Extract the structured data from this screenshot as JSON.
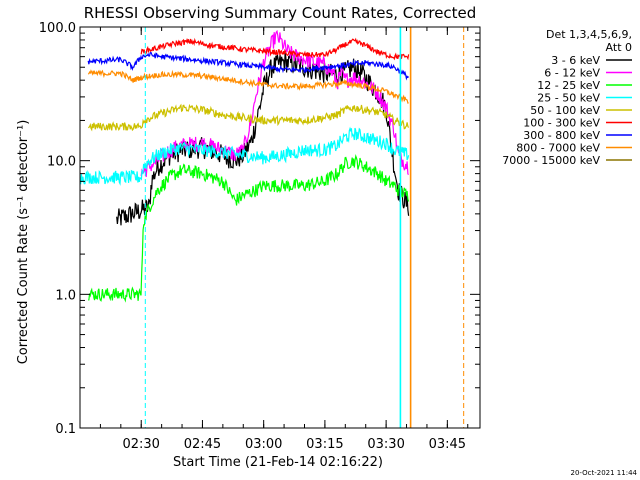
{
  "chart_data": {
    "type": "line",
    "title": "RHESSI Observing Summary Count Rates, Corrected",
    "xlabel": "Start Time (21-Feb-14 02:16:22)",
    "ylabel": "Corrected Count Rate (s⁻¹ detector⁻¹)",
    "yscale": "log",
    "ylim": [
      0.1,
      100
    ],
    "xlim_minutes": [
      -5,
      93
    ],
    "x_unit": "minutes after 02:20 UT",
    "x_ticks": [
      {
        "label": "02:30",
        "value": 10
      },
      {
        "label": "02:45",
        "value": 25
      },
      {
        "label": "03:00",
        "value": 40
      },
      {
        "label": "03:15",
        "value": 55
      },
      {
        "label": "03:30",
        "value": 70
      },
      {
        "label": "03:45",
        "value": 85
      }
    ],
    "y_ticks": [
      {
        "label": "100.0",
        "value": 100
      },
      {
        "label": "10.0",
        "value": 10
      },
      {
        "label": "1.0",
        "value": 1
      },
      {
        "label": "0.1",
        "value": 0.1
      }
    ],
    "legend_header": [
      "Det 1,3,4,5,6,9,",
      "Att 0"
    ],
    "legend_position": "right",
    "timestamp": "20-Oct-2021 11:44",
    "series": [
      {
        "name": "3 - 6 keV",
        "color": "#000000",
        "noise": 0.08,
        "x": [
          4,
          12,
          12.5,
          14,
          17,
          20,
          25,
          30,
          33,
          35,
          37,
          39,
          40,
          42,
          45,
          48,
          52,
          55,
          58,
          60,
          62,
          64,
          66,
          68,
          70,
          71,
          72,
          73,
          75.5
        ],
        "y": [
          3.6,
          4.5,
          7,
          9,
          11,
          12,
          12.5,
          11,
          10,
          11,
          14,
          25,
          35,
          50,
          55,
          52,
          48,
          45,
          44,
          46,
          50,
          45,
          38,
          32,
          25,
          15,
          9,
          6,
          4.5
        ]
      },
      {
        "name": "6 - 12 keV",
        "color": "#ff00ff",
        "noise": 0.06,
        "x": [
          10,
          12,
          14,
          17,
          20,
          25,
          30,
          33,
          35,
          37,
          38,
          39,
          40,
          42,
          43,
          44,
          46,
          48,
          52,
          55,
          57,
          58,
          59,
          60,
          62,
          64,
          66,
          68,
          70,
          72,
          73,
          75.5
        ],
        "y": [
          8,
          9,
          10,
          12,
          13,
          13.5,
          12,
          11,
          12,
          20,
          30,
          40,
          55,
          75,
          85,
          80,
          65,
          60,
          55,
          52,
          45,
          38,
          45,
          40,
          42,
          40,
          36,
          32,
          25,
          17,
          11,
          9
        ]
      },
      {
        "name": "12 - 25 keV",
        "color": "#00ff00",
        "noise": 0.05,
        "x": [
          -3,
          10,
          10.5,
          12,
          14,
          17,
          20,
          25,
          30,
          33,
          35,
          38,
          40,
          45,
          50,
          55,
          58,
          60,
          62,
          65,
          68,
          70,
          72,
          73,
          75.5
        ],
        "y": [
          1,
          1,
          3.5,
          4.5,
          6,
          7.5,
          8.5,
          8,
          7,
          5,
          5.5,
          6,
          6.5,
          6.5,
          6.5,
          7,
          8,
          9.5,
          10,
          9,
          8,
          7,
          6.5,
          6,
          5.5
        ]
      },
      {
        "name": "25 - 50 keV",
        "color": "#00ffff",
        "noise": 0.05,
        "x": [
          -5,
          10,
          10.5,
          12,
          14,
          17,
          20,
          25,
          30,
          35,
          40,
          45,
          50,
          55,
          58,
          60,
          62,
          65,
          68,
          70,
          72,
          75.5
        ],
        "y": [
          7.5,
          7.5,
          9,
          10,
          11,
          12,
          12.5,
          12,
          11.5,
          11,
          10.5,
          11,
          12,
          12,
          13,
          15,
          16,
          15,
          14,
          13.5,
          12,
          11
        ]
      },
      {
        "name": "50 - 100 keV",
        "color": "#ccc000",
        "noise": 0.03,
        "x": [
          -3,
          10,
          10.5,
          14,
          20,
          25,
          30,
          35,
          40,
          45,
          50,
          55,
          58,
          60,
          62,
          65,
          68,
          70,
          72,
          75.5
        ],
        "y": [
          18,
          18,
          20,
          22,
          25,
          24,
          22,
          21,
          20,
          20,
          20,
          21,
          22,
          24,
          25,
          24,
          23,
          22,
          20,
          18
        ]
      },
      {
        "name": "100 - 300 keV",
        "color": "#ff0000",
        "noise": 0.02,
        "x": [
          10,
          14,
          18,
          22,
          25,
          28,
          32,
          35,
          40,
          45,
          50,
          55,
          58,
          60,
          62,
          64,
          66,
          68,
          70,
          72,
          74,
          75.5
        ],
        "y": [
          65,
          70,
          75,
          78,
          75,
          72,
          70,
          68,
          66,
          64,
          62,
          62,
          68,
          74,
          78,
          75,
          70,
          65,
          62,
          60,
          60,
          60
        ]
      },
      {
        "name": "300 - 800 keV",
        "color": "#0000ff",
        "noise": 0.02,
        "x": [
          -3,
          5,
          8,
          10,
          12,
          15,
          20,
          25,
          30,
          35,
          40,
          45,
          50,
          55,
          60,
          65,
          70,
          72,
          75.5
        ],
        "y": [
          55,
          57,
          50,
          60,
          62,
          60,
          58,
          56,
          54,
          52,
          50,
          48,
          48,
          50,
          52,
          54,
          52,
          50,
          42
        ]
      },
      {
        "name": "800 - 7000 keV",
        "color": "#ff8c00",
        "noise": 0.02,
        "x": [
          -3,
          5,
          8,
          10,
          12,
          15,
          20,
          25,
          30,
          35,
          40,
          45,
          50,
          55,
          60,
          65,
          70,
          72,
          75.5
        ],
        "y": [
          45,
          45,
          40,
          42,
          43,
          44,
          44,
          43,
          41,
          39,
          37,
          36,
          36,
          37,
          38,
          36,
          33,
          31,
          28
        ]
      },
      {
        "name": "7000 - 15000 keV",
        "color": "#8b7500",
        "noise": 0,
        "x": [],
        "y": []
      }
    ],
    "annotations": [
      {
        "type": "vline",
        "x": 11,
        "color": "#00ffff",
        "style": "dashed"
      },
      {
        "type": "vline",
        "x": 89,
        "color": "#ff8c00",
        "style": "dashed"
      },
      {
        "type": "vline",
        "x": 73.5,
        "color": "#00ffff",
        "style": "solid"
      },
      {
        "type": "vline",
        "x": 76,
        "color": "#ff8c00",
        "style": "solid"
      }
    ]
  }
}
